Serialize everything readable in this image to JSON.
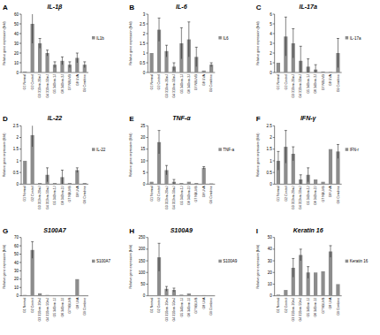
{
  "chart_data": [
    {
      "type": "bar",
      "panel_label": "A",
      "title": "IL-1β",
      "y_label": "Relative gene expression (fold)",
      "categories": [
        "G1 Normal",
        "G2 Control",
        "G3 310nm-20mJ",
        "G4 310nm-50mJ",
        "G5 340nm-1J",
        "G6 340nm-2J",
        "G7 NBUVB",
        "G8 UVA",
        "G9 Combine"
      ],
      "series": [
        {
          "name": "IL1b",
          "color": "#8c8c8c",
          "values": [
            1,
            50,
            30,
            20,
            8,
            12,
            8,
            15,
            8
          ],
          "errors": [
            0,
            20,
            5,
            3,
            3,
            4,
            3,
            5,
            3
          ]
        }
      ],
      "ylim": [
        0,
        60
      ],
      "yticks": [
        0,
        10,
        20,
        30,
        40,
        50,
        60
      ],
      "legend": "right",
      "grid": false
    },
    {
      "type": "bar",
      "panel_label": "B",
      "title": "IL-6",
      "y_label": "Relative gene expression (fold)",
      "categories": [
        "G1 Normal",
        "G2 Control",
        "G3 310nm-20mJ",
        "G4 310nm-50mJ",
        "G5 340nm-1J",
        "G6 340nm-2J",
        "G7 NBUVB",
        "G8 UVA",
        "G9 Combine"
      ],
      "series": [
        {
          "name": "IL6",
          "color": "#8c8c8c",
          "values": [
            1,
            2.2,
            1.1,
            0.3,
            1.5,
            1.7,
            0.8,
            0.1,
            0.4
          ],
          "errors": [
            0,
            0.6,
            0.3,
            0.2,
            0.8,
            0.9,
            0.5,
            0,
            0.1
          ]
        }
      ],
      "ylim": [
        0,
        3
      ],
      "yticks": [
        0,
        0.5,
        1,
        1.5,
        2,
        2.5,
        3
      ],
      "legend": "right",
      "grid": false
    },
    {
      "type": "bar",
      "panel_label": "C",
      "title": "IL-17a",
      "y_label": "Relative gene expression (fold)",
      "categories": [
        "G1 Normal",
        "G2 Control",
        "G3 310nm-20mJ",
        "G4 310nm-50mJ",
        "G5 340nm-1J",
        "G6 340nm-2J",
        "G7 NBUVB",
        "G8 UVA",
        "G9 Combine"
      ],
      "series": [
        {
          "name": "IL-17a",
          "color": "#8c8c8c",
          "values": [
            1,
            3.7,
            3,
            1.2,
            0.6,
            0.3,
            0.1,
            0.05,
            2
          ],
          "errors": [
            0,
            2,
            1.5,
            1.5,
            0.8,
            0.5,
            0,
            0,
            1.5
          ]
        }
      ],
      "ylim": [
        0,
        6
      ],
      "yticks": [
        0,
        1,
        2,
        3,
        4,
        5,
        6
      ],
      "legend": "right",
      "grid": false
    },
    {
      "type": "bar",
      "panel_label": "D",
      "title": "IL-22",
      "y_label": "Relative gene expression (fold)",
      "categories": [
        "G1 Normal",
        "G2 Control",
        "G3 310nm-20mJ",
        "G4 310nm-50mJ",
        "G5 340nm-1J",
        "G6 340nm-2J",
        "G7 NBUVB",
        "G8 UVA",
        "G9 Combine"
      ],
      "series": [
        {
          "name": "IL-22",
          "color": "#8c8c8c",
          "values": [
            1,
            2.1,
            0.05,
            0.4,
            0.05,
            0.3,
            0.05,
            0.6,
            0.05
          ],
          "errors": [
            0,
            0.5,
            0,
            0.3,
            0,
            0.3,
            0,
            0.1,
            0
          ]
        }
      ],
      "ylim": [
        0,
        2.5
      ],
      "yticks": [
        0,
        0.5,
        1,
        1.5,
        2,
        2.5
      ],
      "legend": "right",
      "grid": false
    },
    {
      "type": "bar",
      "panel_label": "E",
      "title": "TNF-α",
      "y_label": "Relative gene expression (fold)",
      "categories": [
        "G1 Normal",
        "G2 Control",
        "G3 310nm-20mJ",
        "G4 310nm-50mJ",
        "G5 340nm-1J",
        "G6 340nm-2J",
        "G7 NBUVB",
        "G8 UVA",
        "G9 Combine"
      ],
      "series": [
        {
          "name": "TNF-a",
          "color": "#8c8c8c",
          "values": [
            1,
            18,
            6,
            1,
            0.5,
            1,
            0.5,
            7,
            0.3
          ],
          "errors": [
            0,
            5,
            2,
            1,
            0,
            0,
            0,
            0.5,
            0
          ]
        }
      ],
      "ylim": [
        0,
        25
      ],
      "yticks": [
        0,
        5,
        10,
        15,
        20,
        25
      ],
      "legend": "right",
      "grid": false
    },
    {
      "type": "bar",
      "panel_label": "F",
      "title": "IFN-γ",
      "y_label": "Relative gene expression (fold)",
      "categories": [
        "G1 Normal",
        "G2 Control",
        "G3 310nm-20mJ",
        "G4 310nm-50mJ",
        "G5 340nm-1J",
        "G6 340nm-2J",
        "G7 NBUVB",
        "G8 UVA",
        "G9 Combine"
      ],
      "series": [
        {
          "name": "IFN-r",
          "color": "#8c8c8c",
          "values": [
            1,
            1.6,
            1.3,
            0.2,
            0.4,
            0.2,
            0.1,
            1.5,
            1.4
          ],
          "errors": [
            0.4,
            0.7,
            0.3,
            0.2,
            0.3,
            0,
            0,
            0,
            0.3
          ]
        }
      ],
      "ylim": [
        0,
        2.5
      ],
      "yticks": [
        0,
        0.5,
        1,
        1.5,
        2,
        2.5
      ],
      "legend": "right",
      "grid": false
    },
    {
      "type": "bar",
      "panel_label": "G",
      "title": "S100A7",
      "y_label": "Relative gene expression (fold)",
      "categories": [
        "G1 Normal",
        "G2 Control",
        "G3 310nm-20mJ",
        "G4 310nm-50mJ",
        "G5 340nm-1J",
        "G6 340nm-2J",
        "G7 NBUVB",
        "G8 UVA",
        "G9 Combine"
      ],
      "series": [
        {
          "name": "S100A7",
          "color": "#8c8c8c",
          "values": [
            1,
            55,
            3,
            1,
            0.5,
            0.5,
            0.3,
            20,
            0.5
          ],
          "errors": [
            0,
            10,
            0,
            0,
            0,
            0,
            0,
            0,
            0
          ]
        }
      ],
      "ylim": [
        0,
        70
      ],
      "yticks": [
        0,
        10,
        20,
        30,
        40,
        50,
        60,
        70
      ],
      "legend": "right",
      "grid": false
    },
    {
      "type": "bar",
      "panel_label": "H",
      "title": "S100A9",
      "y_label": "Relative gene expression (fold)",
      "categories": [
        "G1 Normal",
        "G2 Control",
        "G3 310nm-20mJ",
        "G4 310nm-50mJ",
        "G5 340nm-1J",
        "G6 340nm-2J",
        "G7 NBUVB",
        "G8 UVA",
        "G9 Combine"
      ],
      "series": [
        {
          "name": "S100A9",
          "color": "#8c8c8c",
          "values": [
            1,
            165,
            30,
            25,
            5,
            10,
            2,
            3,
            2
          ],
          "errors": [
            0,
            60,
            10,
            8,
            0,
            0,
            0,
            0,
            0
          ]
        }
      ],
      "ylim": [
        0,
        250
      ],
      "yticks": [
        0,
        50,
        100,
        150,
        200,
        250
      ],
      "legend": "right",
      "grid": false
    },
    {
      "type": "bar",
      "panel_label": "I",
      "title": "Keratin 16",
      "y_label": "Relative gene expression (fold)",
      "categories": [
        "G1 Normal",
        "G2 Control",
        "G3 310nm-20mJ",
        "G4 310nm-50mJ",
        "G5 340nm-1J",
        "G6 340nm-2J",
        "G7 NBUVB",
        "G8 UVA",
        "G9 Combine"
      ],
      "series": [
        {
          "name": "Keratin 16",
          "color": "#8c8c8c",
          "values": [
            1,
            5,
            24,
            35,
            20,
            20,
            21,
            38,
            10
          ],
          "errors": [
            0,
            0,
            8,
            5,
            5,
            0,
            0,
            5,
            0
          ]
        }
      ],
      "ylim": [
        0,
        50
      ],
      "yticks": [
        0,
        10,
        20,
        30,
        40,
        50
      ],
      "legend": "right",
      "grid": false
    }
  ]
}
